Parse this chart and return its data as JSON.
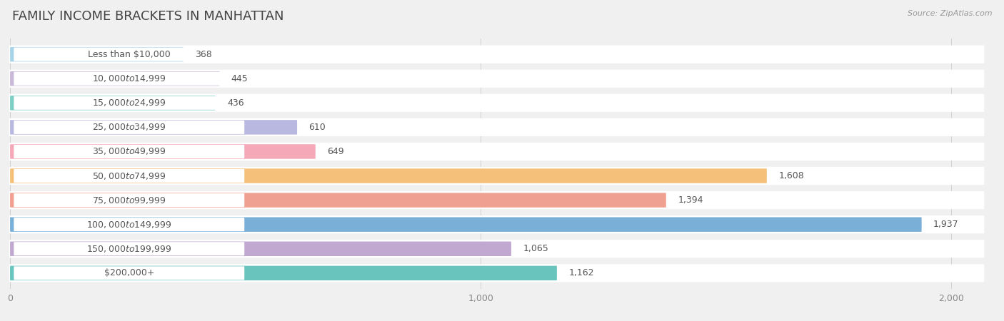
{
  "title": "FAMILY INCOME BRACKETS IN MANHATTAN",
  "source": "Source: ZipAtlas.com",
  "categories": [
    "Less than $10,000",
    "$10,000 to $14,999",
    "$15,000 to $24,999",
    "$25,000 to $34,999",
    "$35,000 to $49,999",
    "$50,000 to $74,999",
    "$75,000 to $99,999",
    "$100,000 to $149,999",
    "$150,000 to $199,999",
    "$200,000+"
  ],
  "values": [
    368,
    445,
    436,
    610,
    649,
    1608,
    1394,
    1937,
    1065,
    1162
  ],
  "colors": [
    "#a8d4e8",
    "#c9b8d8",
    "#7ecec4",
    "#b8b8e0",
    "#f4a8b8",
    "#f4c07a",
    "#f0a090",
    "#7ab0d8",
    "#c0a8d0",
    "#68c4bc"
  ],
  "xlim_data": [
    0,
    2000
  ],
  "background_color": "#f0f0f0",
  "row_bg_color": "#ffffff",
  "label_pill_color": "#ffffff",
  "title_fontsize": 13,
  "label_fontsize": 9,
  "value_fontsize": 9,
  "value_color_outside": "#555555",
  "value_color_inside": "#ffffff",
  "label_color": "#555555",
  "tick_label_color": "#888888"
}
